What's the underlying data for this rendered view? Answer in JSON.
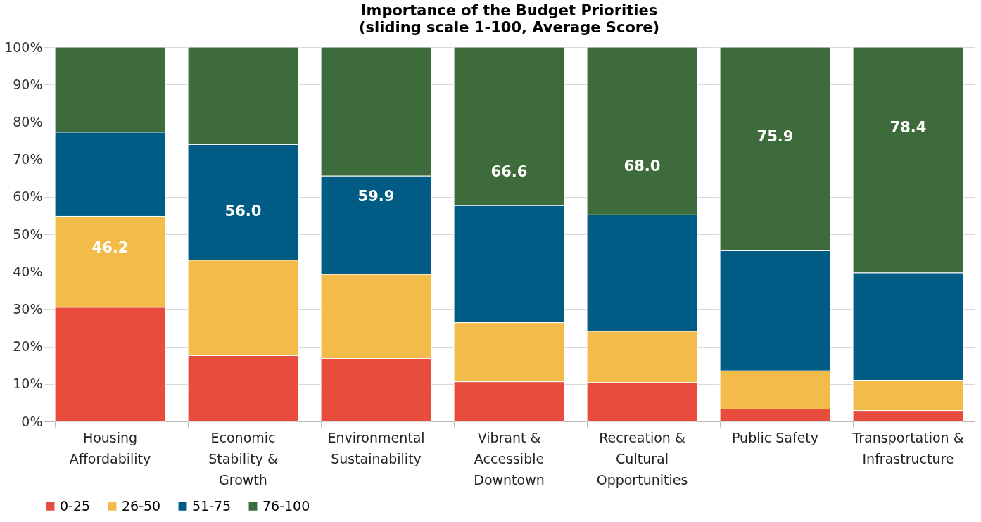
{
  "chart_data": {
    "type": "bar",
    "stacked": true,
    "title": "Importance of the Budget Priorities",
    "subtitle": "(sliding scale 1-100, Average Score)",
    "categories": [
      "Housing Affordability",
      "Economic Stability & Growth",
      "Environmental Sustainability",
      "Vibrant & Accessible Downtown",
      "Recreation & Cultural Opportunities",
      "Public Safety",
      "Transportation & Infrastructure"
    ],
    "series": [
      {
        "name": "0-25",
        "color": "#e84c3d",
        "values": [
          30.5,
          17.6,
          16.8,
          10.6,
          10.4,
          3.3,
          2.9
        ]
      },
      {
        "name": "26-50",
        "color": "#f3bc4a",
        "values": [
          24.3,
          25.5,
          22.5,
          15.8,
          13.7,
          10.2,
          8.1
        ]
      },
      {
        "name": "51-75",
        "color": "#005b85",
        "values": [
          22.5,
          30.9,
          26.3,
          31.3,
          31.1,
          32.1,
          28.7
        ]
      },
      {
        "name": "76-100",
        "color": "#3e6b3c",
        "values": [
          22.7,
          26.0,
          34.4,
          42.3,
          44.8,
          54.4,
          60.3
        ]
      }
    ],
    "ylim": [
      0,
      100
    ],
    "yticks": [
      {
        "value": 0,
        "label": "0%"
      },
      {
        "value": 10,
        "label": "10%"
      },
      {
        "value": 20,
        "label": "20%"
      },
      {
        "value": 30,
        "label": "30%"
      },
      {
        "value": 40,
        "label": "40%"
      },
      {
        "value": 50,
        "label": "50%"
      },
      {
        "value": 60,
        "label": "60%"
      },
      {
        "value": 70,
        "label": "70%"
      },
      {
        "value": 80,
        "label": "80%"
      },
      {
        "value": 90,
        "label": "90%"
      },
      {
        "value": 100,
        "label": "100%"
      }
    ],
    "grid": "y",
    "legend": "bottom",
    "annotations": [
      "46.2",
      "56.0",
      "59.9",
      "66.6",
      "68.0",
      "75.9",
      "78.4"
    ]
  }
}
